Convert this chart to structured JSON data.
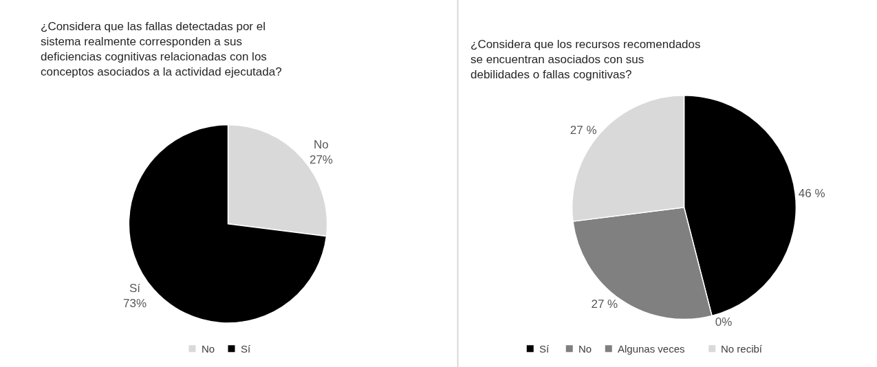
{
  "chart_data": [
    {
      "type": "pie",
      "title": "¿Considera que las fallas detectadas por el\nsistema realmente corresponden a sus\ndeficiencias cognitivas relacionadas con los\nconceptos asociados a la actividad ejecutada?",
      "categories": [
        "No",
        "Sí"
      ],
      "values": [
        27,
        73
      ],
      "colors": [
        "#d9d9d9",
        "#000000"
      ],
      "value_labels": [
        "No\n27%",
        "Sí\n73%"
      ],
      "legend": "bottom"
    },
    {
      "type": "pie",
      "title": "¿Considera que los recursos recomendados\nse encuentran asociados con sus\ndebilidades o fallas cognitivas?",
      "categories": [
        "Sí",
        "No",
        "Algunas veces",
        "No recibí"
      ],
      "values": [
        46,
        0,
        27,
        27
      ],
      "colors": [
        "#000000",
        "#7f7f7f",
        "#808080",
        "#d9d9d9"
      ],
      "value_labels": [
        "46 %",
        "0%",
        "27 %",
        "27 %"
      ],
      "legend": "bottom"
    }
  ]
}
